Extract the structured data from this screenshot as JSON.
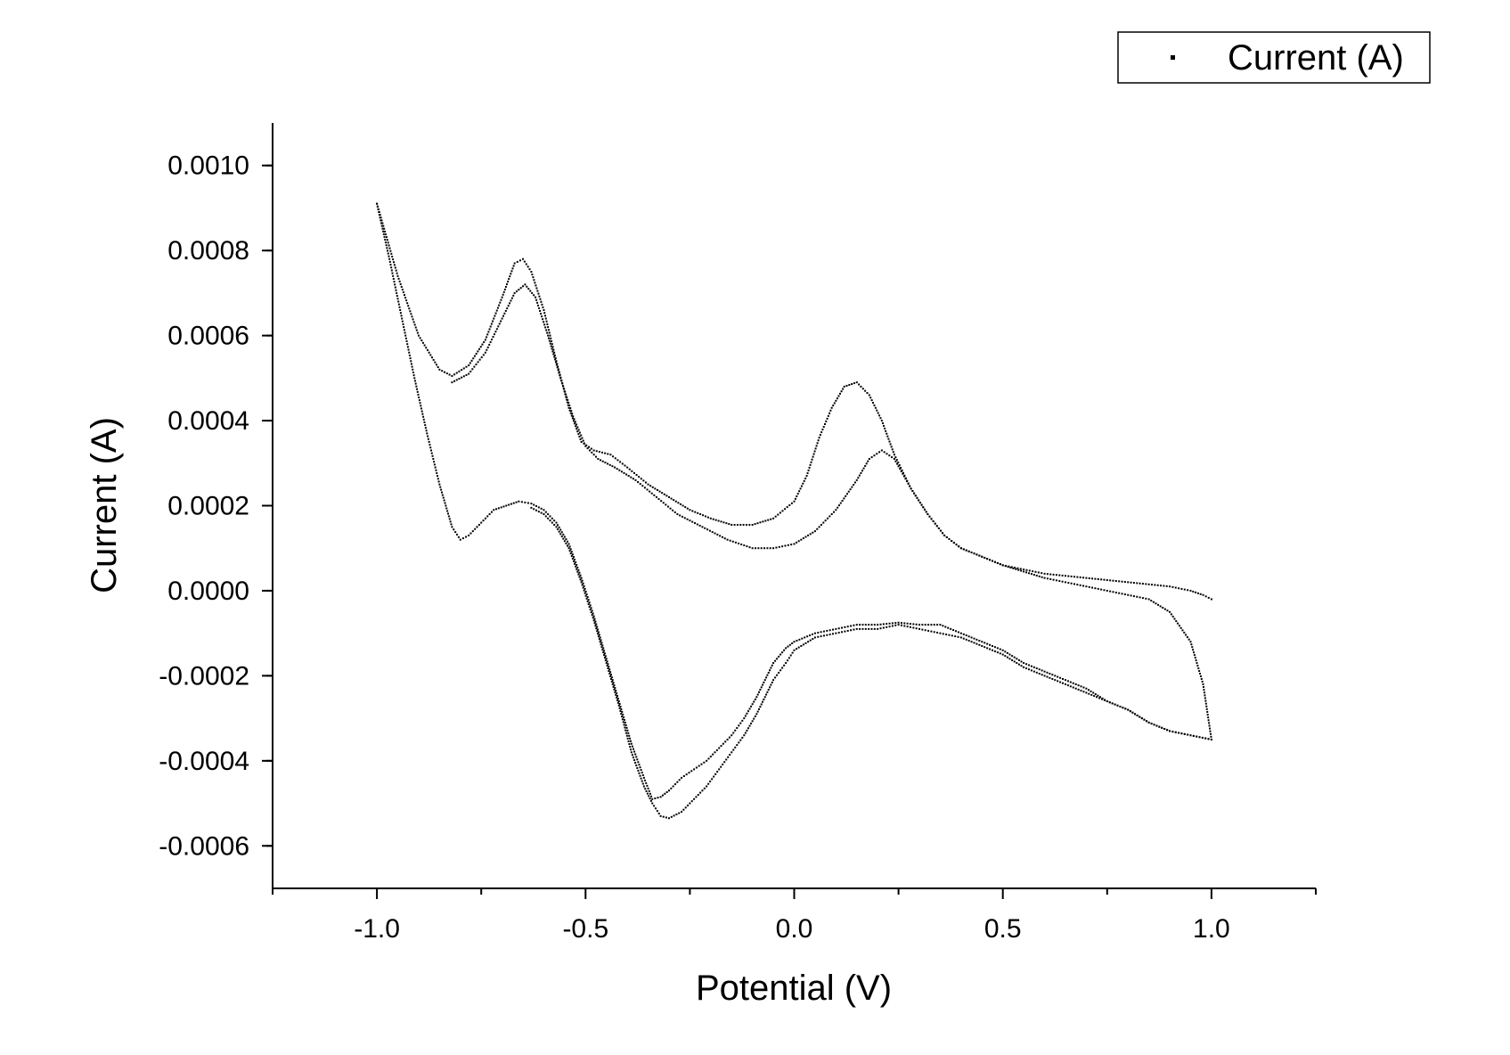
{
  "chart_data": {
    "type": "scatter",
    "title": "",
    "xlabel": "Potential (V)",
    "ylabel": "Current (A)",
    "xlim": [
      -1.25,
      1.25
    ],
    "ylim": [
      -0.0007,
      0.0011
    ],
    "x_ticks": [
      {
        "value": -1.0,
        "label": "-1.0"
      },
      {
        "value": -0.5,
        "label": "-0.5"
      },
      {
        "value": 0.0,
        "label": "0.0"
      },
      {
        "value": 0.5,
        "label": "0.5"
      },
      {
        "value": 1.0,
        "label": "1.0"
      }
    ],
    "y_ticks": [
      {
        "value": 0.001,
        "label": "0.0010"
      },
      {
        "value": 0.0008,
        "label": "0.0008"
      },
      {
        "value": 0.0006,
        "label": "0.0006"
      },
      {
        "value": 0.0004,
        "label": "0.0004"
      },
      {
        "value": 0.0002,
        "label": "0.0002"
      },
      {
        "value": 0.0,
        "label": "0.0000"
      },
      {
        "value": -0.0002,
        "label": "-0.0002"
      },
      {
        "value": -0.0004,
        "label": "-0.0004"
      },
      {
        "value": -0.0006,
        "label": "-0.0006"
      }
    ],
    "grid": false,
    "legend": {
      "position": "top-right",
      "entries": [
        "Current (A)"
      ]
    },
    "series": [
      {
        "name": "Current (A)",
        "marker": "square",
        "color": "#000000",
        "segments": [
          {
            "x": [
              -1.0,
              -0.95,
              -0.9,
              -0.85,
              -0.82,
              -0.78,
              -0.74,
              -0.7,
              -0.67,
              -0.65,
              -0.63,
              -0.6,
              -0.57,
              -0.54,
              -0.51,
              -0.48,
              -0.44,
              -0.4,
              -0.35,
              -0.3,
              -0.25,
              -0.2,
              -0.15,
              -0.1,
              -0.05,
              0.0,
              0.03,
              0.06,
              0.09,
              0.12,
              0.15,
              0.18,
              0.21,
              0.24,
              0.28,
              0.32,
              0.36,
              0.4,
              0.45,
              0.5,
              0.55,
              0.6,
              0.65,
              0.7,
              0.75,
              0.8,
              0.85,
              0.9,
              0.95,
              0.98,
              1.0
            ],
            "y": [
              0.00091,
              0.00074,
              0.0006,
              0.00052,
              0.000505,
              0.00053,
              0.00059,
              0.00069,
              0.00077,
              0.00078,
              0.00075,
              0.00066,
              0.00054,
              0.00043,
              0.00035,
              0.00033,
              0.00032,
              0.00029,
              0.00025,
              0.00022,
              0.00019,
              0.00017,
              0.000155,
              0.000155,
              0.00017,
              0.00021,
              0.00027,
              0.00036,
              0.00043,
              0.00048,
              0.00049,
              0.00046,
              0.0004,
              0.00032,
              0.00024,
              0.00018,
              0.00013,
              0.0001,
              8e-05,
              6e-05,
              5e-05,
              4e-05,
              3.5e-05,
              3e-05,
              2.5e-05,
              2e-05,
              1.5e-05,
              1e-05,
              0.0,
              -1e-05,
              -2e-05
            ]
          },
          {
            "x": [
              -0.82,
              -0.78,
              -0.74,
              -0.7,
              -0.67,
              -0.645,
              -0.62,
              -0.59,
              -0.56,
              -0.53,
              -0.5,
              -0.47,
              -0.43,
              -0.38,
              -0.33,
              -0.28,
              -0.22,
              -0.16,
              -0.1,
              -0.05,
              0.0,
              0.05,
              0.1,
              0.15,
              0.18,
              0.21,
              0.24,
              0.28,
              0.32,
              0.36,
              0.4,
              0.45,
              0.5,
              0.55,
              0.6,
              0.65,
              0.7,
              0.75,
              0.8,
              0.85,
              0.9,
              0.95,
              0.98,
              1.0
            ],
            "y": [
              0.00049,
              0.00051,
              0.00056,
              0.00064,
              0.0007,
              0.00072,
              0.00069,
              0.0006,
              0.0005,
              0.00041,
              0.00034,
              0.00031,
              0.00029,
              0.00026,
              0.00022,
              0.00018,
              0.00015,
              0.00012,
              0.0001,
              0.0001,
              0.00011,
              0.00014,
              0.00019,
              0.00026,
              0.00031,
              0.00033,
              0.00031,
              0.00024,
              0.00018,
              0.00013,
              0.0001,
              8e-05,
              6e-05,
              4.5e-05,
              3e-05,
              2e-05,
              1e-05,
              0.0,
              -1e-05,
              -2e-05,
              -5e-05,
              -0.00012,
              -0.00022,
              -0.00035
            ]
          },
          {
            "x": [
              -1.0,
              -0.97,
              -0.94,
              -0.91,
              -0.88,
              -0.85,
              -0.82,
              -0.8,
              -0.78,
              -0.75,
              -0.72,
              -0.69,
              -0.66,
              -0.63,
              -0.6,
              -0.57,
              -0.54,
              -0.51,
              -0.48,
              -0.45,
              -0.42,
              -0.39,
              -0.36,
              -0.34,
              -0.32,
              -0.3,
              -0.27,
              -0.24,
              -0.21,
              -0.18,
              -0.15,
              -0.12,
              -0.09,
              -0.07,
              -0.05,
              -0.02,
              0.0,
              0.05,
              0.1,
              0.15,
              0.2,
              0.25,
              0.3,
              0.35,
              0.4,
              0.45,
              0.5,
              0.55,
              0.6,
              0.65,
              0.7,
              0.75,
              0.8,
              0.85,
              0.9,
              0.95,
              1.0
            ],
            "y": [
              0.00091,
              0.00078,
              0.00064,
              0.0005,
              0.00037,
              0.00025,
              0.00015,
              0.00012,
              0.00013,
              0.00016,
              0.00019,
              0.0002,
              0.00021,
              0.000205,
              0.00019,
              0.00016,
              0.00011,
              3e-05,
              -6e-05,
              -0.00016,
              -0.00026,
              -0.00036,
              -0.00044,
              -0.00049,
              -0.000485,
              -0.00047,
              -0.00044,
              -0.00042,
              -0.0004,
              -0.00037,
              -0.00034,
              -0.0003,
              -0.00025,
              -0.00021,
              -0.00017,
              -0.000135,
              -0.00012,
              -0.0001,
              -9e-05,
              -8e-05,
              -8e-05,
              -7.5e-05,
              -8e-05,
              -8e-05,
              -0.0001,
              -0.00012,
              -0.00014,
              -0.00017,
              -0.00019,
              -0.00021,
              -0.00023,
              -0.00026,
              -0.00028,
              -0.00031,
              -0.00033,
              -0.00034,
              -0.00035
            ]
          },
          {
            "x": [
              -0.63,
              -0.6,
              -0.57,
              -0.54,
              -0.51,
              -0.48,
              -0.45,
              -0.42,
              -0.39,
              -0.36,
              -0.34,
              -0.32,
              -0.3,
              -0.27,
              -0.24,
              -0.21,
              -0.18,
              -0.15,
              -0.12,
              -0.09,
              -0.07,
              -0.05,
              -0.02,
              0.0,
              0.05,
              0.1,
              0.15,
              0.2,
              0.25,
              0.3,
              0.35,
              0.4,
              0.45,
              0.5,
              0.55,
              0.6,
              0.65,
              0.7,
              0.75,
              0.8,
              0.85,
              0.9,
              0.95,
              1.0
            ],
            "y": [
              0.000195,
              0.00018,
              0.00015,
              0.0001,
              2e-05,
              -7e-05,
              -0.00017,
              -0.00027,
              -0.00038,
              -0.00046,
              -0.0005,
              -0.00053,
              -0.000535,
              -0.00052,
              -0.00049,
              -0.00046,
              -0.00042,
              -0.00038,
              -0.00034,
              -0.00029,
              -0.00025,
              -0.00021,
              -0.00017,
              -0.00014,
              -0.00011,
              -0.0001,
              -9e-05,
              -9e-05,
              -8e-05,
              -9e-05,
              -0.0001,
              -0.00011,
              -0.00013,
              -0.00015,
              -0.00018,
              -0.0002,
              -0.00022,
              -0.00024,
              -0.00026,
              -0.00028,
              -0.00031,
              -0.00033,
              -0.00034,
              -0.00035
            ]
          }
        ]
      }
    ]
  }
}
